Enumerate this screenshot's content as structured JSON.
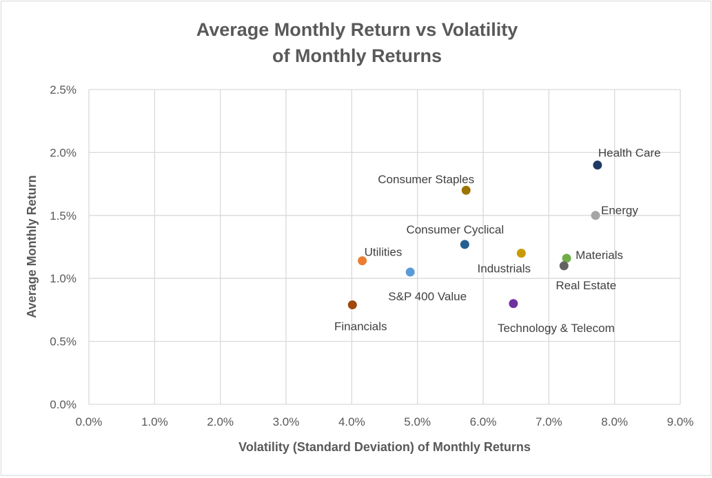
{
  "chart_data": {
    "type": "scatter",
    "title": [
      "Average Monthly Return vs Volatility",
      "of Monthly Returns"
    ],
    "xlabel": "Volatility (Standard Deviation) of Monthly Returns",
    "ylabel": "Average Monthly Return",
    "xlim": [
      0,
      9
    ],
    "ylim": [
      0,
      2.5
    ],
    "x_ticks": [
      "0.0%",
      "1.0%",
      "2.0%",
      "3.0%",
      "4.0%",
      "5.0%",
      "6.0%",
      "7.0%",
      "8.0%",
      "9.0%"
    ],
    "y_ticks": [
      "0.0%",
      "0.5%",
      "1.0%",
      "1.5%",
      "2.0%",
      "2.5%"
    ],
    "grid": true,
    "legend": "none",
    "points": [
      {
        "name": "Health Care",
        "x": 7.74,
        "y": 1.9,
        "color": "#203864"
      },
      {
        "name": "Consumer Staples",
        "x": 5.74,
        "y": 1.7,
        "color": "#9c7400"
      },
      {
        "name": "Energy",
        "x": 7.71,
        "y": 1.5,
        "color": "#a5a5a5"
      },
      {
        "name": "Consumer Cyclical",
        "x": 5.72,
        "y": 1.27,
        "color": "#255e91"
      },
      {
        "name": "Industrials",
        "x": 6.58,
        "y": 1.2,
        "color": "#c99a00"
      },
      {
        "name": "Materials",
        "x": 7.27,
        "y": 1.16,
        "color": "#70ad47"
      },
      {
        "name": "Real Estate",
        "x": 7.23,
        "y": 1.1,
        "color": "#636363"
      },
      {
        "name": "Utilities",
        "x": 4.16,
        "y": 1.14,
        "color": "#ed7d31"
      },
      {
        "name": "S&P 400 Value",
        "x": 4.89,
        "y": 1.05,
        "color": "#5b9bd5"
      },
      {
        "name": "Financials",
        "x": 4.01,
        "y": 0.79,
        "color": "#9e480e"
      },
      {
        "name": "Technology & Telecom",
        "x": 6.46,
        "y": 0.8,
        "color": "#7030a0"
      }
    ]
  }
}
